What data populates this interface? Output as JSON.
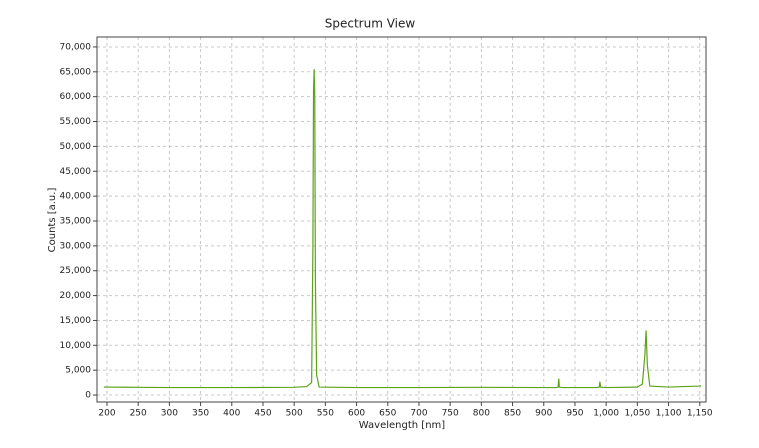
{
  "chart_data": {
    "type": "line",
    "title": "Spectrum View",
    "x_label": "Wavelength [nm]",
    "y_label": "Counts [a.u.]",
    "xlim": [
      184,
      1160
    ],
    "ylim": [
      -1400,
      72000
    ],
    "xticks": [
      200,
      250,
      300,
      350,
      400,
      450,
      500,
      550,
      600,
      650,
      700,
      750,
      800,
      850,
      900,
      950,
      {
        "value": 1000,
        "label": "1,000"
      },
      {
        "value": 1050,
        "label": "1,050"
      },
      {
        "value": 1100,
        "label": "1,100"
      },
      {
        "value": 1150,
        "label": "1,150"
      }
    ],
    "yticks": [
      0,
      {
        "value": 5000,
        "label": "5,000"
      },
      {
        "value": 10000,
        "label": "10,000"
      },
      {
        "value": 15000,
        "label": "15,000"
      },
      {
        "value": 20000,
        "label": "20,000"
      },
      {
        "value": 25000,
        "label": "25,000"
      },
      {
        "value": 30000,
        "label": "30,000"
      },
      {
        "value": 35000,
        "label": "35,000"
      },
      {
        "value": 40000,
        "label": "40,000"
      },
      {
        "value": 45000,
        "label": "45,000"
      },
      {
        "value": 50000,
        "label": "50,000"
      },
      {
        "value": 55000,
        "label": "55,000"
      },
      {
        "value": 60000,
        "label": "60,000"
      },
      {
        "value": 65000,
        "label": "65,000"
      },
      {
        "value": 70000,
        "label": "70,000"
      }
    ],
    "grid": true,
    "series": [
      {
        "color": "#5ea21b",
        "x": [
          195,
          250,
          300,
          400,
          500,
          520,
          528,
          530,
          531,
          532,
          533,
          534,
          536,
          540,
          600,
          700,
          800,
          900,
          920,
          923,
          924,
          925,
          930,
          985,
          989,
          990,
          991,
          1000,
          1050,
          1058,
          1062,
          1064,
          1066,
          1070,
          1100,
          1150,
          1152
        ],
        "values": [
          1600,
          1550,
          1500,
          1500,
          1550,
          1700,
          2500,
          30000,
          61000,
          65500,
          60000,
          23000,
          4000,
          1600,
          1500,
          1500,
          1550,
          1500,
          1500,
          1600,
          3300,
          1600,
          1500,
          1500,
          1600,
          2700,
          1600,
          1500,
          1600,
          2200,
          8000,
          13000,
          6000,
          1800,
          1600,
          1800,
          1900
        ]
      }
    ]
  }
}
